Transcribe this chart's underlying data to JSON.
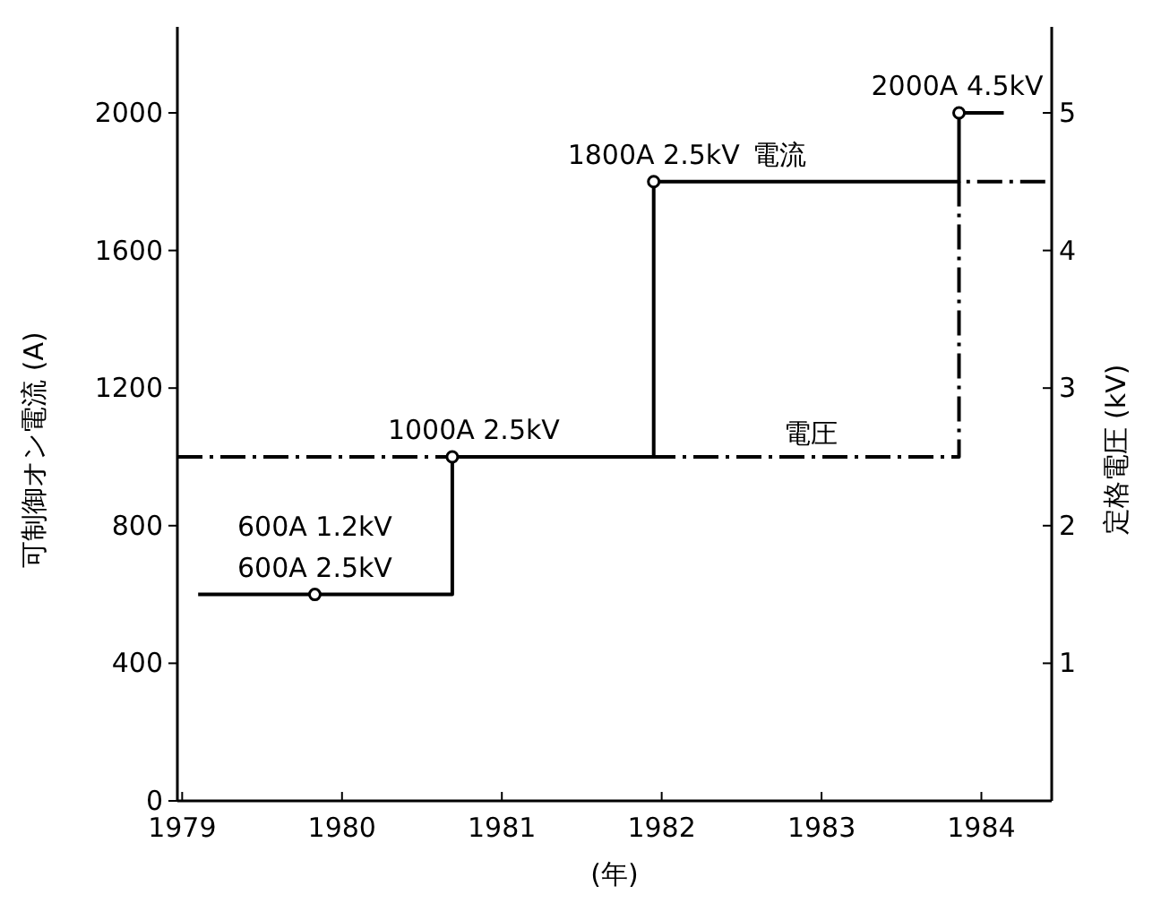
{
  "chart_data": {
    "type": "step",
    "xlabel": "(年)",
    "ylabel": "可制御オン電流 (A)",
    "y2label": "定格電圧 (kV)",
    "xlim": [
      1978.97,
      1984.44
    ],
    "xticks": [
      1979,
      1980,
      1981,
      1982,
      1983,
      1984
    ],
    "ylim": [
      0,
      2250
    ],
    "yticks": [
      0,
      400,
      800,
      1200,
      1600,
      2000
    ],
    "y2lim": [
      0,
      5.625
    ],
    "y2ticks": [
      1,
      2,
      3,
      4,
      5
    ],
    "series": [
      {
        "name": "電流",
        "color": "#000000",
        "line_style": "solid",
        "x": [
          1979.1,
          1979.83,
          1980.69,
          1981.95,
          1983.86,
          1984.14
        ],
        "values": [
          600,
          600,
          1000,
          1800,
          2000,
          2000
        ]
      },
      {
        "name": "電圧",
        "color": "#000000",
        "line_style": "dashed",
        "axis": "y2",
        "x": [
          1978.97,
          1983.86,
          1984.44
        ],
        "values": [
          2.5,
          4.5,
          4.5
        ]
      },
      {
        "color": "#000000",
        "type": "scatter",
        "marker": "circle",
        "x": [
          1979.83,
          1980.69,
          1981.95,
          1983.86
        ],
        "values": [
          600,
          1000,
          1800,
          2000
        ]
      }
    ],
    "annotations": [
      {
        "text": "600A 1.2kV",
        "x": 1979.83,
        "y": 600
      },
      {
        "text": "600A 2.5kV",
        "x": 1979.83,
        "y": 600
      },
      {
        "text": "1000A 2.5kV",
        "x": 1980.69,
        "y": 1000
      },
      {
        "text": "1800A 2.5kV",
        "x": 1981.95,
        "y": 1800
      },
      {
        "text": "2000A 4.5kV",
        "x": 1983.86,
        "y": 2000
      }
    ]
  }
}
